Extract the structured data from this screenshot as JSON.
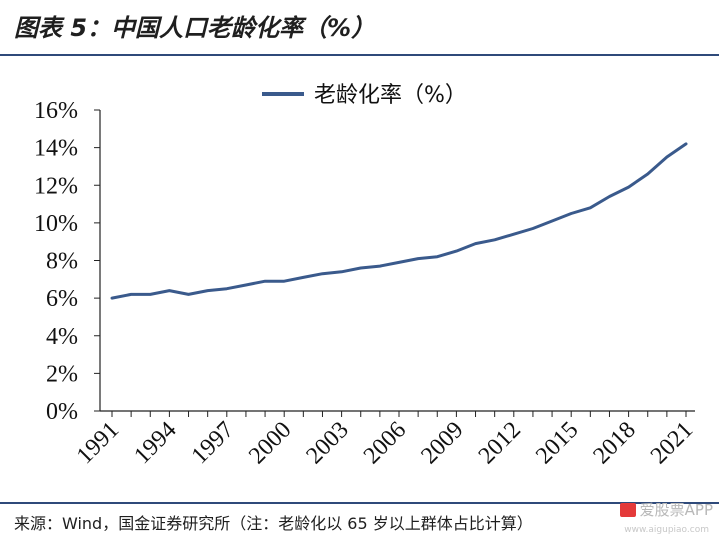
{
  "header": {
    "title": "图表 5：中国人口老龄化率（%）"
  },
  "footer": {
    "source": "来源：Wind，国金证券研究所（注：老龄化以 65 岁以上群体占比计算）",
    "watermark": "爱股票APP",
    "watermark_url": "www.aigupiao.com"
  },
  "chart_data": {
    "type": "line",
    "title": "",
    "xlabel": "",
    "ylabel": "",
    "x": [
      1991,
      1992,
      1993,
      1994,
      1995,
      1996,
      1997,
      1998,
      1999,
      2000,
      2001,
      2002,
      2003,
      2004,
      2005,
      2006,
      2007,
      2008,
      2009,
      2010,
      2011,
      2012,
      2013,
      2014,
      2015,
      2016,
      2017,
      2018,
      2019,
      2020,
      2021
    ],
    "x_tick_labels": [
      "1991",
      "1994",
      "1997",
      "2000",
      "2003",
      "2006",
      "2009",
      "2012",
      "2015",
      "2018",
      "2021"
    ],
    "y_tick_labels": [
      "0%",
      "2%",
      "4%",
      "6%",
      "8%",
      "10%",
      "12%",
      "14%",
      "16%"
    ],
    "ylim": [
      0,
      16
    ],
    "grid": false,
    "legend_position": "top-center",
    "series": [
      {
        "name": "老龄化率（%）",
        "color": "#3a5a8c",
        "values": [
          6.0,
          6.2,
          6.2,
          6.4,
          6.2,
          6.4,
          6.5,
          6.7,
          6.9,
          6.9,
          7.1,
          7.3,
          7.4,
          7.6,
          7.7,
          7.9,
          8.1,
          8.2,
          8.5,
          8.9,
          9.1,
          9.4,
          9.7,
          10.1,
          10.5,
          10.8,
          11.4,
          11.9,
          12.6,
          13.5,
          14.2
        ]
      }
    ]
  }
}
